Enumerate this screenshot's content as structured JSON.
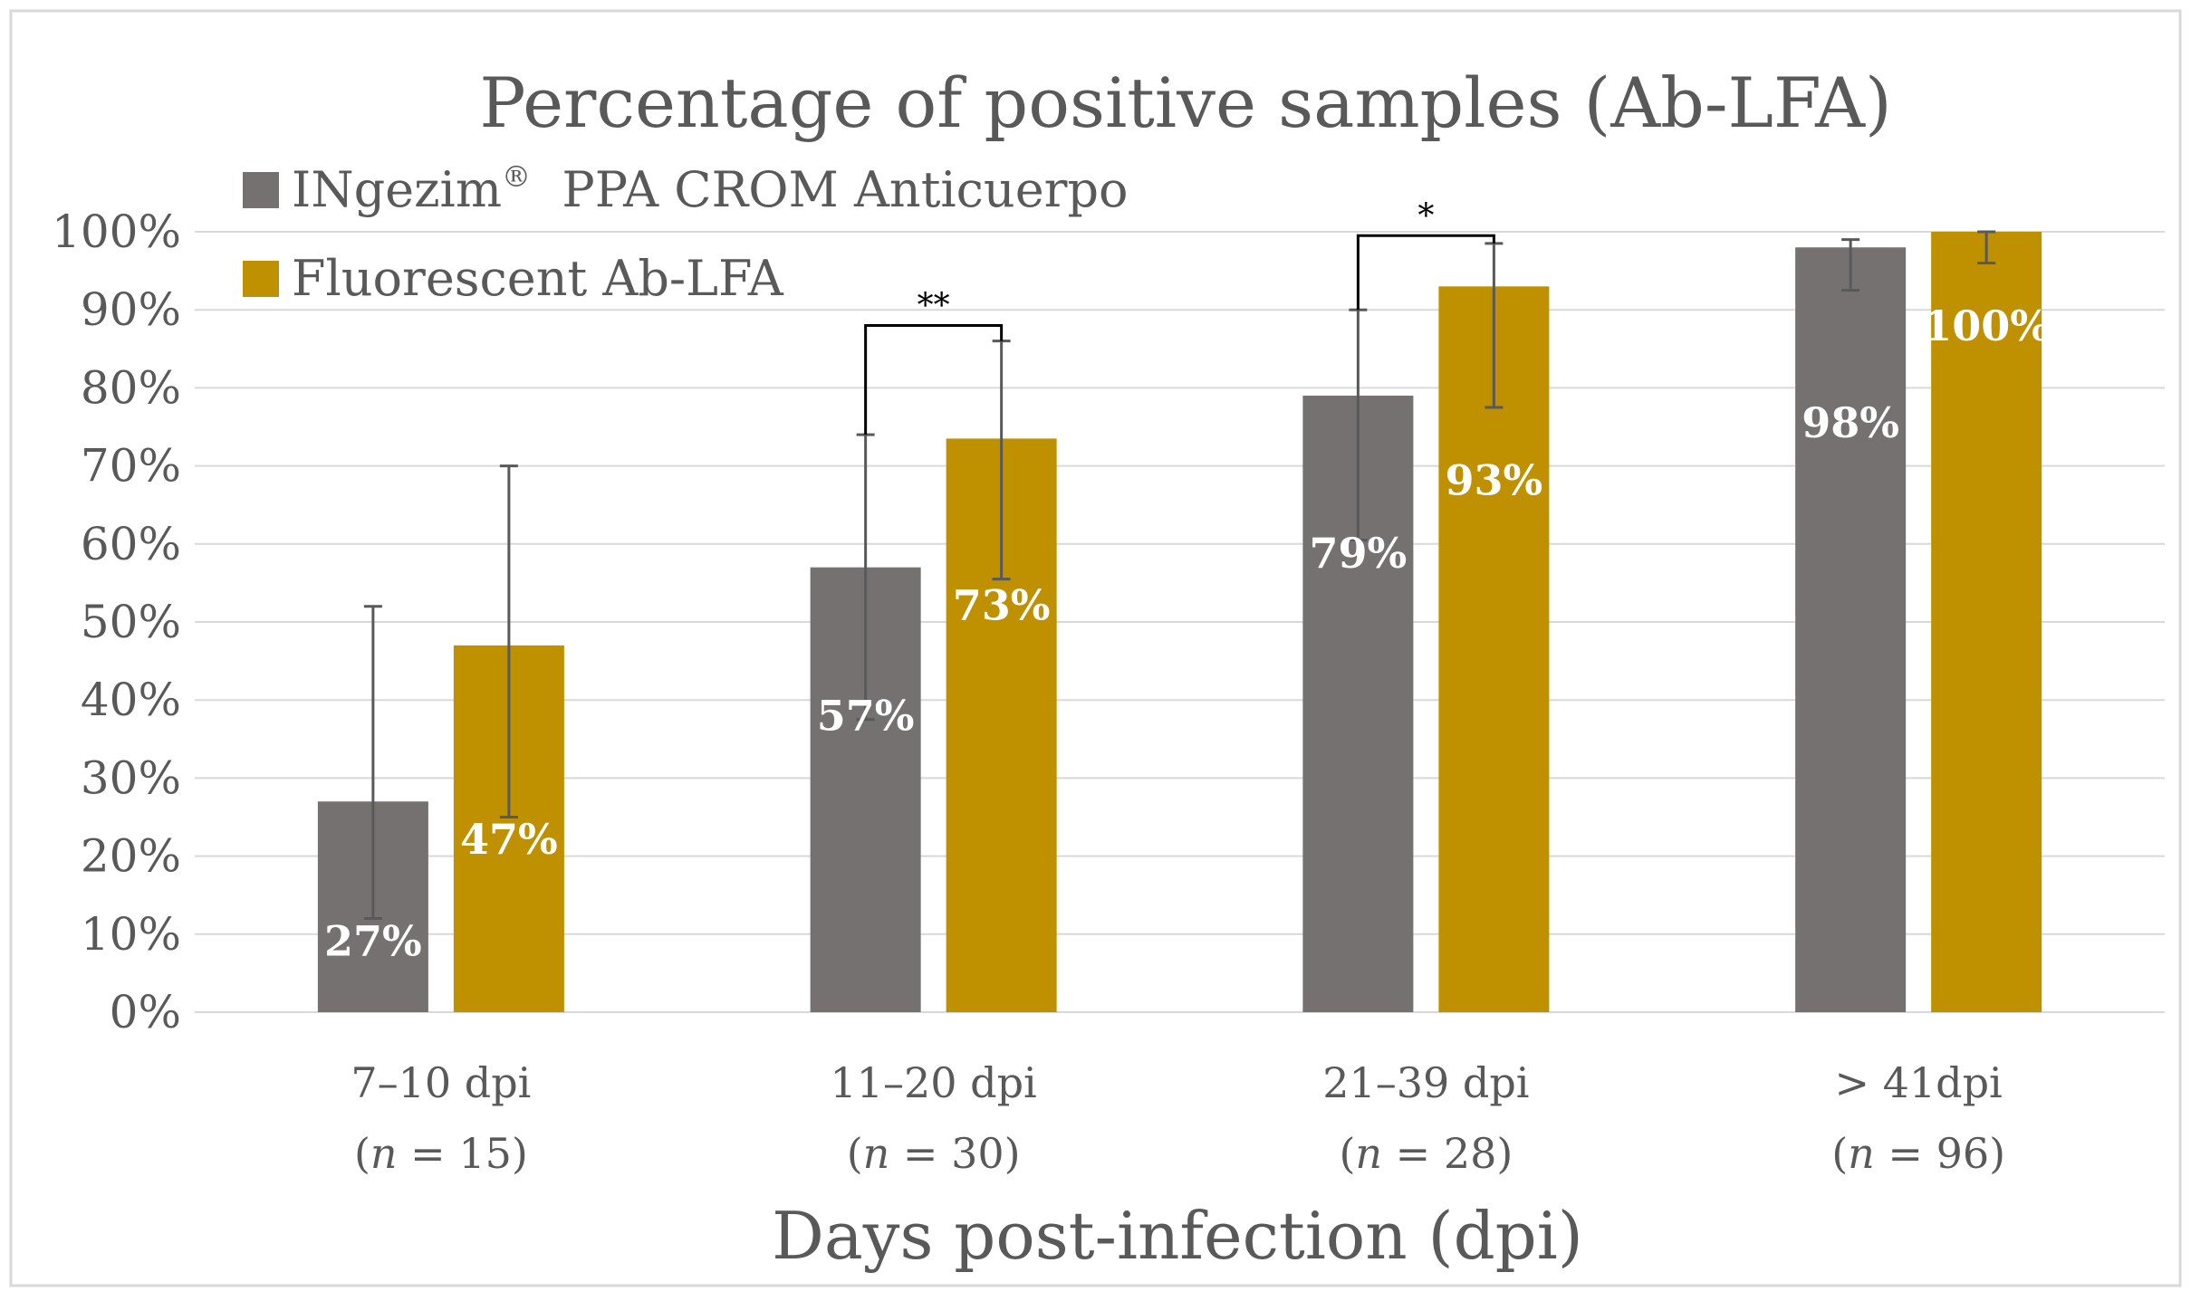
{
  "chart_data": {
    "type": "bar",
    "title": "Percentage of positive samples (Ab-LFA)",
    "xlabel": "Days post-infection (dpi)",
    "ylabel": "",
    "ylim": [
      0,
      100
    ],
    "yticks": [
      "0%",
      "10%",
      "20%",
      "30%",
      "40%",
      "50%",
      "60%",
      "70%",
      "80%",
      "90%",
      "100%"
    ],
    "grid": true,
    "legend_position": "top-left",
    "categories": [
      {
        "label": "7–10 dpi",
        "n_prefix": "(",
        "n_var": "n",
        "n_eq": " = 15)"
      },
      {
        "label": "11–20 dpi",
        "n_prefix": "(",
        "n_var": "n",
        "n_eq": " = 30)"
      },
      {
        "label": "21–39 dpi",
        "n_prefix": "(",
        "n_var": "n",
        "n_eq": " = 28)"
      },
      {
        "label": "> 41dpi",
        "n_prefix": "(",
        "n_var": "n",
        "n_eq": " = 96)"
      }
    ],
    "series": [
      {
        "name": "INgezim",
        "name_sup": "®",
        "name_rest": "  PPA CROM Anticuerpo",
        "color": "#767171",
        "values": [
          27,
          57,
          79,
          98
        ],
        "labels": [
          "27%",
          "57%",
          "79%",
          "98%"
        ],
        "error_low": [
          12,
          37.5,
          60.5,
          92.5
        ],
        "error_high": [
          52,
          74,
          90,
          99
        ]
      },
      {
        "name": "Fluorescent Ab-LFA",
        "color": "#bf9000",
        "values": [
          47,
          73.5,
          93,
          100
        ],
        "labels": [
          "47%",
          "73%",
          "93%",
          "100%"
        ],
        "error_low": [
          25,
          55.5,
          77.5,
          96
        ],
        "error_high": [
          70,
          86,
          98.5,
          100
        ]
      }
    ],
    "significance": [
      {
        "category_index": 1,
        "label": "**",
        "level": 88
      },
      {
        "category_index": 2,
        "label": "*",
        "level": 99.5
      }
    ]
  }
}
